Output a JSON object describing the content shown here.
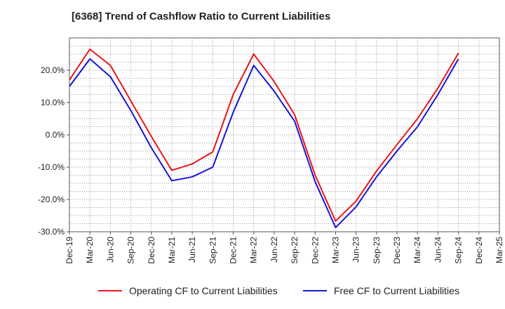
{
  "chart_data": {
    "type": "line",
    "title": "[6368]  Trend of Cashflow Ratio to Current Liabilities",
    "xlabel": "",
    "ylabel": "",
    "x_ticks": [
      "Dec-19",
      "Mar-20",
      "Jun-20",
      "Sep-20",
      "Dec-20",
      "Mar-21",
      "Jun-21",
      "Sep-21",
      "Dec-21",
      "Mar-22",
      "Jun-22",
      "Sep-22",
      "Dec-22",
      "Mar-23",
      "Jun-23",
      "Sep-23",
      "Dec-23",
      "Mar-24",
      "Jun-24",
      "Sep-24",
      "Dec-24",
      "Mar-25"
    ],
    "y_ticks": [
      "20.0%",
      "10.0%",
      "0.0%",
      "-10.0%",
      "-20.0%",
      "-30.0%"
    ],
    "ylim": [
      -30,
      30
    ],
    "grid": true,
    "legend_position": "bottom",
    "series": [
      {
        "name": "Operating CF to Current Liabilities",
        "color": "#e8161c",
        "x": [
          "Dec-19",
          "Mar-20",
          "Jun-20",
          "Sep-20",
          "Dec-20",
          "Mar-21",
          "Jun-21",
          "Sep-21",
          "Dec-21",
          "Mar-22",
          "Jun-22",
          "Sep-22",
          "Dec-22",
          "Mar-23",
          "Jun-23",
          "Sep-23",
          "Dec-23",
          "Mar-24",
          "Jun-24",
          "Sep-24"
        ],
        "values": [
          17.0,
          26.5,
          21.5,
          10.5,
          -0.5,
          -11.0,
          -9.0,
          -5.3,
          12.5,
          25.0,
          16.5,
          6.2,
          -12.5,
          -26.7,
          -20.5,
          -11.2,
          -3.0,
          5.0,
          14.5,
          25.3
        ]
      },
      {
        "name": "Free CF to Current Liabilities",
        "color": "#1616d6",
        "x": [
          "Dec-19",
          "Mar-20",
          "Jun-20",
          "Sep-20",
          "Dec-20",
          "Mar-21",
          "Jun-21",
          "Sep-21",
          "Dec-21",
          "Mar-22",
          "Jun-22",
          "Sep-22",
          "Dec-22",
          "Mar-23",
          "Jun-23",
          "Sep-23",
          "Dec-23",
          "Mar-24",
          "Jun-24",
          "Sep-24"
        ],
        "values": [
          15.0,
          23.5,
          18.0,
          7.5,
          -4.0,
          -14.2,
          -13.0,
          -10.0,
          7.0,
          21.5,
          13.5,
          4.2,
          -14.5,
          -28.7,
          -22.3,
          -13.0,
          -5.0,
          2.5,
          12.5,
          23.5
        ]
      }
    ]
  }
}
